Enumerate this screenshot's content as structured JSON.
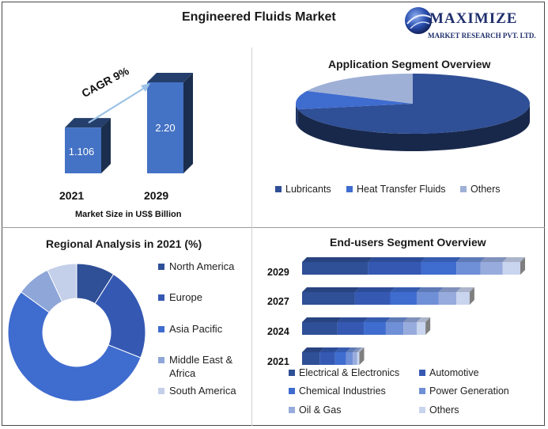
{
  "page": {
    "title": "Engineered Fluids Market"
  },
  "logo": {
    "name": "MAXIMIZE",
    "subtitle": "MARKET RESEARCH PVT. LTD."
  },
  "chart_data": [
    {
      "type": "bar",
      "title": "",
      "categories": [
        "2021",
        "2029"
      ],
      "values": [
        1.106,
        2.2
      ],
      "value_labels": [
        "1.106",
        "2.20"
      ],
      "xlabel": "Market Size in US$ Billion",
      "annotation": "CAGR 9%",
      "color": "#4472c4"
    },
    {
      "type": "pie",
      "title": "Application Segment Overview",
      "labels": [
        "Lubricants",
        "Heat Transfer Fluids",
        "Others"
      ],
      "values": [
        72,
        10,
        18
      ],
      "colors": [
        "#2f4f96",
        "#3f6ccf",
        "#9fb0d6"
      ],
      "legend": "bottom"
    },
    {
      "type": "pie",
      "title": "Regional Analysis in 2021 (%)",
      "labels": [
        "North America",
        "Europe",
        "Asia Pacific",
        "Middle East & Africa",
        "South America"
      ],
      "values": [
        9,
        22,
        54,
        8,
        7
      ],
      "colors": [
        "#2f4f96",
        "#3559b3",
        "#3f6ccf",
        "#8ea6d8",
        "#c4cfe9"
      ],
      "legend": "right"
    },
    {
      "type": "bar",
      "orientation": "horizontal",
      "stacked": true,
      "title": "End-users Segment Overview",
      "categories": [
        "2029",
        "2027",
        "2024",
        "2021"
      ],
      "series": [
        {
          "name": "Electrical & Electronics",
          "values": [
            30,
            24,
            16,
            8
          ]
        },
        {
          "name": "Automotive",
          "values": [
            24,
            16,
            12,
            7
          ]
        },
        {
          "name": "Chemical Industries",
          "values": [
            16,
            12,
            10,
            5
          ]
        },
        {
          "name": "Power Generation",
          "values": [
            11,
            10,
            8,
            3
          ]
        },
        {
          "name": "Oil & Gas",
          "values": [
            10,
            8,
            6,
            2
          ]
        },
        {
          "name": "Others",
          "values": [
            8,
            6,
            4,
            1
          ]
        }
      ],
      "colors": [
        "#2f4f96",
        "#3559b3",
        "#3f6ccf",
        "#6f8fd6",
        "#97abdc",
        "#c9d4ee"
      ],
      "legend": "bottom"
    }
  ]
}
